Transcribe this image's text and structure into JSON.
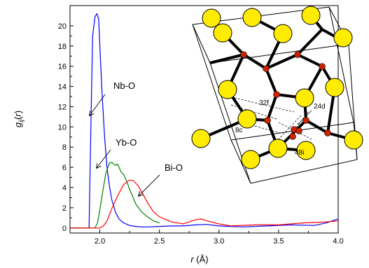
{
  "chart_data": {
    "type": "line",
    "xlabel": "r (Å)",
    "ylabel": "gij(r)",
    "xlim": [
      1.75,
      4.0
    ],
    "ylim": [
      -0.5,
      22
    ],
    "xticks": [
      "2.0",
      "2.5",
      "3.0",
      "3.5",
      "4.0"
    ],
    "yticks": [
      "0",
      "2",
      "4",
      "6",
      "8",
      "10",
      "12",
      "14",
      "16",
      "18",
      "20"
    ],
    "series": [
      {
        "name": "Nb-O",
        "color": "#0000ff",
        "x": [
          1.75,
          1.91,
          1.925,
          1.94,
          1.96,
          1.975,
          1.99,
          2.0,
          2.02,
          2.04,
          2.06,
          2.08,
          2.1,
          2.13,
          2.16,
          2.2,
          2.25,
          2.3,
          2.35,
          2.4,
          2.5,
          2.6,
          2.7,
          2.8,
          2.9,
          3.0,
          3.2,
          3.4,
          3.6,
          3.8,
          3.9,
          3.95,
          4.0
        ],
        "y": [
          0,
          0,
          10,
          19,
          20.9,
          21.2,
          20.7,
          18,
          13,
          9,
          6,
          4.2,
          2.8,
          1.6,
          0.9,
          0.5,
          0.25,
          0.15,
          0.1,
          0.1,
          0.15,
          0.2,
          0.2,
          0.3,
          0.35,
          0.2,
          0.1,
          0.2,
          0.3,
          0.25,
          0.5,
          0.7,
          0.9
        ]
      },
      {
        "name": "Yb-O",
        "color": "#008000",
        "x": [
          1.75,
          1.96,
          1.98,
          2.0,
          2.02,
          2.05,
          2.08,
          2.1,
          2.13,
          2.15,
          2.18,
          2.2,
          2.23,
          2.25,
          2.28,
          2.3,
          2.35,
          2.4,
          2.45,
          2.5
        ],
        "y": [
          0,
          0,
          0.5,
          1.8,
          3.3,
          5.4,
          6.4,
          6.5,
          6.2,
          6.3,
          5.5,
          5.3,
          4.5,
          3.8,
          3.0,
          2.4,
          1.6,
          1.1,
          0.7,
          0.5
        ]
      },
      {
        "name": "Bi-O",
        "color": "#ff0000",
        "x": [
          1.75,
          2.0,
          2.03,
          2.06,
          2.1,
          2.15,
          2.2,
          2.25,
          2.28,
          2.32,
          2.36,
          2.4,
          2.45,
          2.5,
          2.6,
          2.7,
          2.8,
          2.85,
          2.9,
          3.0,
          3.1,
          3.3,
          3.5,
          3.7,
          3.9,
          4.0
        ],
        "y": [
          0,
          0,
          0.2,
          0.7,
          1.9,
          3.2,
          4.3,
          4.75,
          4.7,
          4.2,
          3.4,
          2.5,
          1.6,
          1.1,
          0.6,
          0.4,
          0.8,
          0.9,
          0.7,
          0.4,
          0.2,
          0.3,
          0.3,
          0.5,
          0.6,
          0.7
        ]
      }
    ],
    "annotations": [
      "Nb-O",
      "Yb-O",
      "Bi-O"
    ],
    "grid": false,
    "legend": "none"
  },
  "inset": {
    "sites": [
      "32f",
      "8c",
      "48i",
      "24d"
    ],
    "atom_colors": {
      "large": "#ffec00",
      "small": "#cc2200"
    }
  }
}
